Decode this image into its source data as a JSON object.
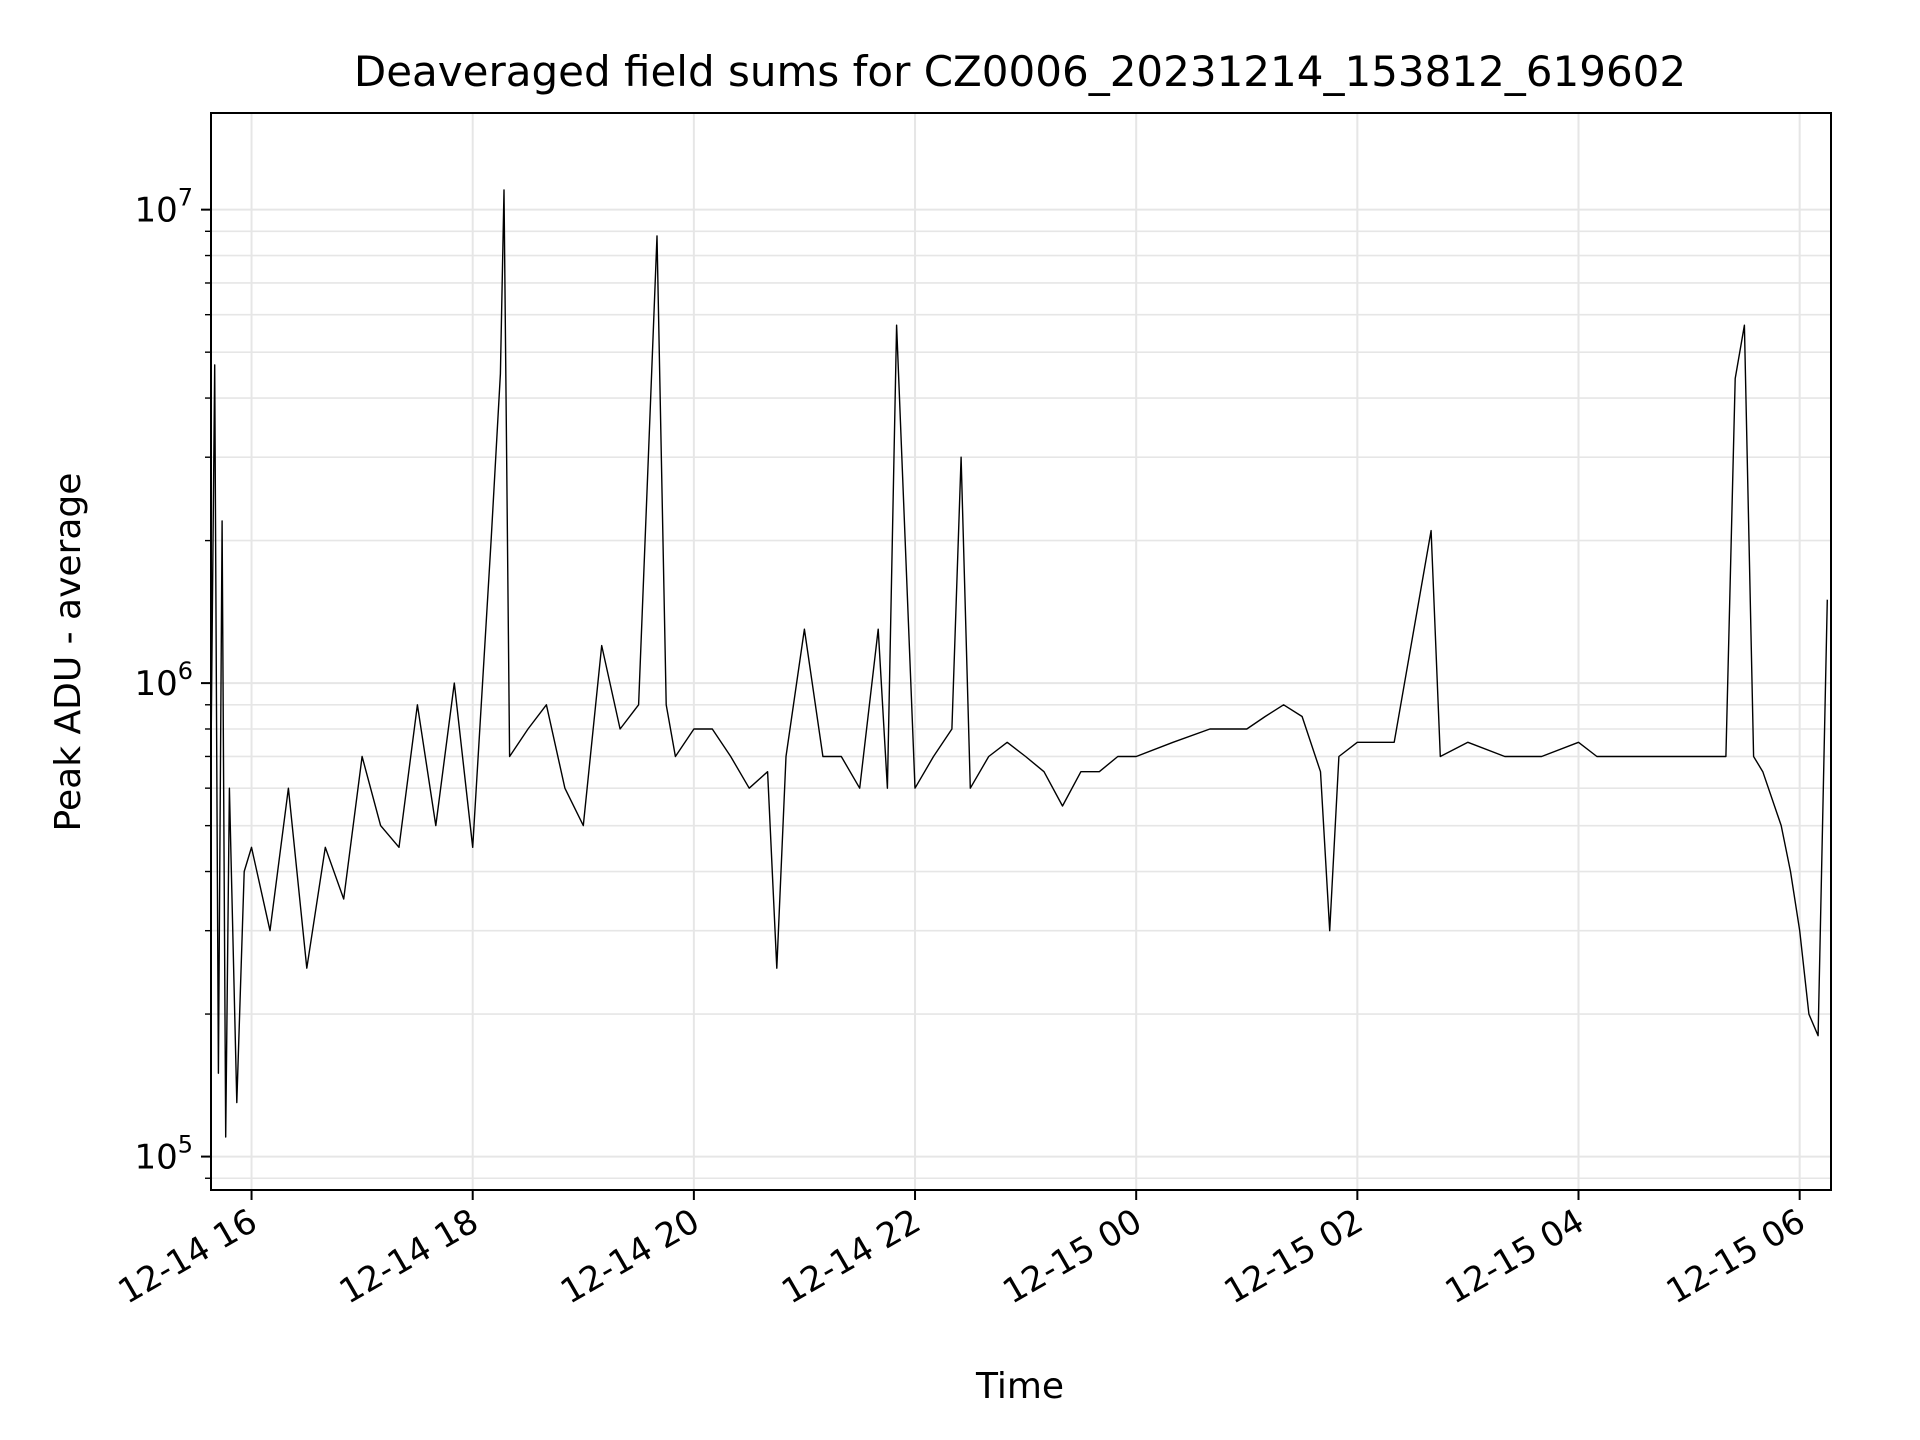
{
  "chart_data": {
    "type": "line",
    "title": "Deaveraged field sums for CZ0006_20231214_153812_619602",
    "xlabel": "Time",
    "ylabel": "Peak ADU - average",
    "yscale": "log",
    "ylim": [
      85000,
      16000000
    ],
    "xlim": [
      "2023-12-14 15:38",
      "2023-12-15 06:17"
    ],
    "grid": true,
    "line_color": "#000000",
    "grid_color": "#e6e6e6",
    "x_ticks": [
      {
        "value": "2023-12-14 16:00",
        "label": "12-14 16"
      },
      {
        "value": "2023-12-14 18:00",
        "label": "12-14 18"
      },
      {
        "value": "2023-12-14 20:00",
        "label": "12-14 20"
      },
      {
        "value": "2023-12-14 22:00",
        "label": "12-14 22"
      },
      {
        "value": "2023-12-15 00:00",
        "label": "12-15 00"
      },
      {
        "value": "2023-12-15 02:00",
        "label": "12-15 02"
      },
      {
        "value": "2023-12-15 04:00",
        "label": "12-15 04"
      },
      {
        "value": "2023-12-15 06:00",
        "label": "12-15 06"
      }
    ],
    "y_ticks": [
      {
        "value": 100000,
        "base": "10",
        "exp": "5"
      },
      {
        "value": 1000000,
        "base": "10",
        "exp": "6"
      },
      {
        "value": 10000000,
        "base": "10",
        "exp": "7"
      }
    ],
    "x": [
      "2023-12-14 15:38",
      "2023-12-14 15:40",
      "2023-12-14 15:42",
      "2023-12-14 15:44",
      "2023-12-14 15:46",
      "2023-12-14 15:48",
      "2023-12-14 15:52",
      "2023-12-14 15:56",
      "2023-12-14 16:00",
      "2023-12-14 16:10",
      "2023-12-14 16:20",
      "2023-12-14 16:30",
      "2023-12-14 16:40",
      "2023-12-14 16:50",
      "2023-12-14 17:00",
      "2023-12-14 17:10",
      "2023-12-14 17:20",
      "2023-12-14 17:30",
      "2023-12-14 17:40",
      "2023-12-14 17:50",
      "2023-12-14 18:00",
      "2023-12-14 18:10",
      "2023-12-14 18:15",
      "2023-12-14 18:17",
      "2023-12-14 18:20",
      "2023-12-14 18:30",
      "2023-12-14 18:40",
      "2023-12-14 18:50",
      "2023-12-14 19:00",
      "2023-12-14 19:10",
      "2023-12-14 19:20",
      "2023-12-14 19:30",
      "2023-12-14 19:35",
      "2023-12-14 19:40",
      "2023-12-14 19:45",
      "2023-12-14 19:50",
      "2023-12-14 20:00",
      "2023-12-14 20:10",
      "2023-12-14 20:20",
      "2023-12-14 20:30",
      "2023-12-14 20:40",
      "2023-12-14 20:45",
      "2023-12-14 20:50",
      "2023-12-14 21:00",
      "2023-12-14 21:10",
      "2023-12-14 21:20",
      "2023-12-14 21:30",
      "2023-12-14 21:40",
      "2023-12-14 21:45",
      "2023-12-14 21:50",
      "2023-12-14 22:00",
      "2023-12-14 22:10",
      "2023-12-14 22:20",
      "2023-12-14 22:25",
      "2023-12-14 22:30",
      "2023-12-14 22:40",
      "2023-12-14 22:50",
      "2023-12-14 23:00",
      "2023-12-14 23:10",
      "2023-12-14 23:20",
      "2023-12-14 23:30",
      "2023-12-14 23:40",
      "2023-12-14 23:50",
      "2023-12-15 00:00",
      "2023-12-15 00:20",
      "2023-12-15 00:40",
      "2023-12-15 01:00",
      "2023-12-15 01:10",
      "2023-12-15 01:20",
      "2023-12-15 01:30",
      "2023-12-15 01:40",
      "2023-12-15 01:45",
      "2023-12-15 01:50",
      "2023-12-15 02:00",
      "2023-12-15 02:20",
      "2023-12-15 02:40",
      "2023-12-15 02:45",
      "2023-12-15 03:00",
      "2023-12-15 03:20",
      "2023-12-15 03:40",
      "2023-12-15 04:00",
      "2023-12-15 04:10",
      "2023-12-15 04:20",
      "2023-12-15 04:40",
      "2023-12-15 05:00",
      "2023-12-15 05:20",
      "2023-12-15 05:25",
      "2023-12-15 05:30",
      "2023-12-15 05:35",
      "2023-12-15 05:40",
      "2023-12-15 05:50",
      "2023-12-15 05:55",
      "2023-12-15 06:00",
      "2023-12-15 06:05",
      "2023-12-15 06:10",
      "2023-12-15 06:15"
    ],
    "series": [
      {
        "values": [
          700000,
          4700000,
          150000,
          2200000,
          110000,
          600000,
          130000,
          400000,
          450000,
          300000,
          600000,
          250000,
          450000,
          350000,
          700000,
          500000,
          450000,
          900000,
          500000,
          1000000,
          450000,
          2000000,
          4500000,
          11000000,
          700000,
          800000,
          900000,
          600000,
          500000,
          1200000,
          800000,
          900000,
          2800000,
          8800000,
          900000,
          700000,
          800000,
          800000,
          700000,
          600000,
          650000,
          250000,
          700000,
          1300000,
          700000,
          700000,
          600000,
          1300000,
          600000,
          5700000,
          600000,
          700000,
          800000,
          3000000,
          600000,
          700000,
          750000,
          700000,
          650000,
          550000,
          650000,
          650000,
          700000,
          700000,
          750000,
          800000,
          800000,
          850000,
          900000,
          850000,
          650000,
          300000,
          700000,
          750000,
          750000,
          2100000,
          700000,
          750000,
          700000,
          700000,
          750000,
          700000,
          700000,
          700000,
          700000,
          700000,
          4400000,
          5700000,
          700000,
          650000,
          500000,
          400000,
          300000,
          200000,
          180000,
          1500000
        ]
      }
    ]
  }
}
